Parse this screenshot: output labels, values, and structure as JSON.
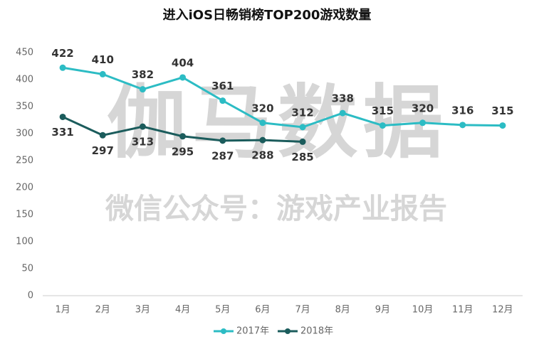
{
  "chart_data": {
    "type": "line",
    "title": "进入iOS日畅销榜TOP200游戏数量",
    "categories": [
      "1月",
      "2月",
      "3月",
      "4月",
      "5月",
      "6月",
      "7月",
      "8月",
      "9月",
      "10月",
      "11月",
      "12月"
    ],
    "series": [
      {
        "name": "2017年",
        "color": "#2cbcc4",
        "values": [
          422,
          410,
          382,
          404,
          361,
          320,
          312,
          338,
          315,
          320,
          316,
          315
        ]
      },
      {
        "name": "2018年",
        "color": "#1b5c5c",
        "values": [
          331,
          297,
          313,
          295,
          287,
          288,
          285,
          null,
          null,
          null,
          null,
          null
        ]
      }
    ],
    "ylim": [
      0,
      450
    ],
    "yticks": [
      0,
      50,
      100,
      150,
      200,
      250,
      300,
      350,
      400,
      450
    ],
    "legend": "bottom",
    "annotations": [
      "伽马数据",
      "微信公众号：游戏产业报告"
    ]
  }
}
